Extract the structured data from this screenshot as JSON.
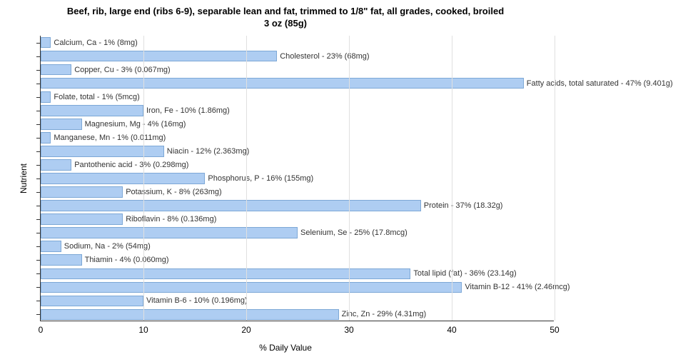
{
  "title_line1": "Beef, rib, large end (ribs 6-9), separable lean and fat, trimmed to 1/8\" fat, all grades, cooked, broiled",
  "title_line2": "3 oz (85g)",
  "y_axis_label": "Nutrient",
  "x_axis_label": "% Daily Value",
  "chart": {
    "type": "bar",
    "x_min": 0,
    "x_max": 50,
    "x_tick_step": 10,
    "bar_color": "#aecdf2",
    "bar_border_color": "#7da8d6",
    "grid_color": "#e0e0e0",
    "background_color": "#ffffff",
    "title_fontsize": 13,
    "label_fontsize": 12,
    "bar_label_fontsize": 11,
    "bars": [
      {
        "value": 1,
        "label": "Calcium, Ca - 1% (8mg)"
      },
      {
        "value": 23,
        "label": "Cholesterol - 23% (68mg)"
      },
      {
        "value": 3,
        "label": "Copper, Cu - 3% (0.067mg)"
      },
      {
        "value": 47,
        "label": "Fatty acids, total saturated - 47% (9.401g)"
      },
      {
        "value": 1,
        "label": "Folate, total - 1% (5mcg)"
      },
      {
        "value": 10,
        "label": "Iron, Fe - 10% (1.86mg)"
      },
      {
        "value": 4,
        "label": "Magnesium, Mg - 4% (16mg)"
      },
      {
        "value": 1,
        "label": "Manganese, Mn - 1% (0.011mg)"
      },
      {
        "value": 12,
        "label": "Niacin - 12% (2.363mg)"
      },
      {
        "value": 3,
        "label": "Pantothenic acid - 3% (0.298mg)"
      },
      {
        "value": 16,
        "label": "Phosphorus, P - 16% (155mg)"
      },
      {
        "value": 8,
        "label": "Potassium, K - 8% (263mg)"
      },
      {
        "value": 37,
        "label": "Protein - 37% (18.32g)"
      },
      {
        "value": 8,
        "label": "Riboflavin - 8% (0.136mg)"
      },
      {
        "value": 25,
        "label": "Selenium, Se - 25% (17.8mcg)"
      },
      {
        "value": 2,
        "label": "Sodium, Na - 2% (54mg)"
      },
      {
        "value": 4,
        "label": "Thiamin - 4% (0.060mg)"
      },
      {
        "value": 36,
        "label": "Total lipid (fat) - 36% (23.14g)"
      },
      {
        "value": 41,
        "label": "Vitamin B-12 - 41% (2.46mcg)"
      },
      {
        "value": 10,
        "label": "Vitamin B-6 - 10% (0.196mg)"
      },
      {
        "value": 29,
        "label": "Zinc, Zn - 29% (4.31mg)"
      }
    ]
  }
}
